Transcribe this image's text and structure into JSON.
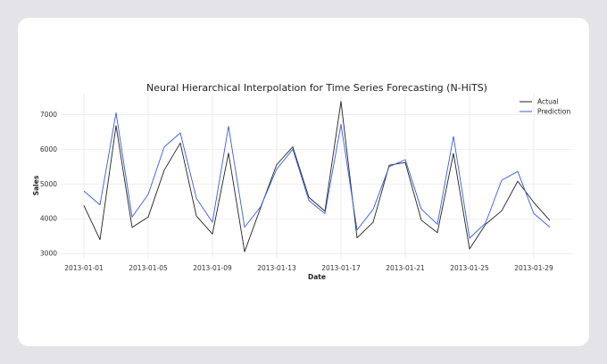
{
  "chart_data": {
    "type": "line",
    "title": "Neural Hierarchical Interpolation for Time Series Forecasting (N-HiTS)",
    "xlabel": "Date",
    "ylabel": "Sales",
    "x": [
      "2013-01-01",
      "2013-01-02",
      "2013-01-03",
      "2013-01-04",
      "2013-01-05",
      "2013-01-06",
      "2013-01-07",
      "2013-01-08",
      "2013-01-09",
      "2013-01-10",
      "2013-01-11",
      "2013-01-12",
      "2013-01-13",
      "2013-01-14",
      "2013-01-15",
      "2013-01-16",
      "2013-01-17",
      "2013-01-18",
      "2013-01-19",
      "2013-01-20",
      "2013-01-21",
      "2013-01-22",
      "2013-01-23",
      "2013-01-24",
      "2013-01-25",
      "2013-01-26",
      "2013-01-27",
      "2013-01-28",
      "2013-01-29",
      "2013-01-30"
    ],
    "x_ticks": [
      "2013-01-01",
      "2013-01-05",
      "2013-01-09",
      "2013-01-13",
      "2013-01-17",
      "2013-01-21",
      "2013-01-25",
      "2013-01-29"
    ],
    "y_ticks": [
      3000,
      4000,
      5000,
      6000,
      7000
    ],
    "ylim": [
      2850,
      7600
    ],
    "grid": true,
    "legend_position": "top-right",
    "series": [
      {
        "name": "Actual",
        "color": "#222222",
        "values": [
          4380,
          3400,
          6680,
          3750,
          4050,
          5400,
          6180,
          4080,
          3560,
          5890,
          3050,
          4320,
          5560,
          6070,
          4620,
          4220,
          7380,
          3450,
          3900,
          5540,
          5620,
          3960,
          3600,
          5880,
          3130,
          3840,
          4230,
          5080,
          4470,
          3950
        ]
      },
      {
        "name": "Prediction",
        "color": "#3a5bd9",
        "values": [
          4800,
          4400,
          7050,
          4050,
          4700,
          6070,
          6470,
          4590,
          3900,
          6660,
          3760,
          4350,
          5430,
          6000,
          4530,
          4150,
          6720,
          3680,
          4270,
          5500,
          5700,
          4280,
          3840,
          6370,
          3440,
          3880,
          5110,
          5360,
          4150,
          3760
        ]
      }
    ]
  }
}
